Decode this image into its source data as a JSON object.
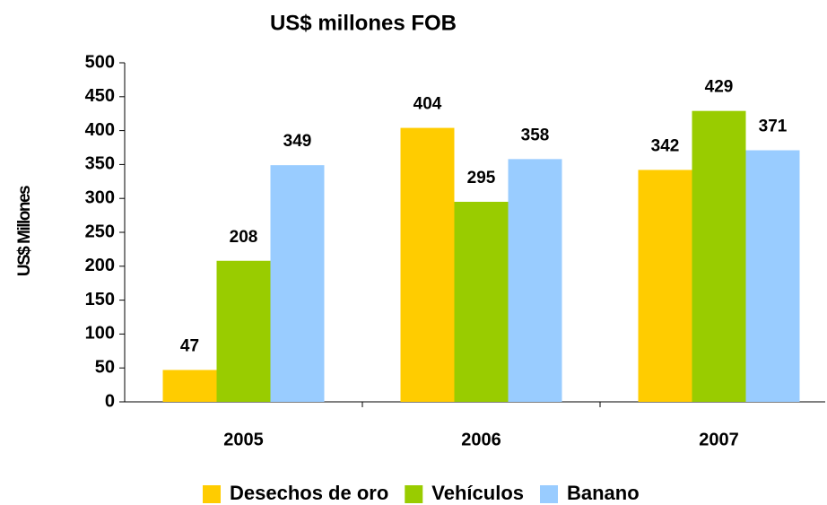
{
  "chart_data": {
    "type": "bar",
    "title": "US$ millones FOB",
    "y_label": "US$ Millones",
    "categories": [
      "2005",
      "2006",
      "2007"
    ],
    "series": [
      {
        "name": "Desechos de oro",
        "color": "#ffcc00",
        "values": [
          47,
          404,
          342
        ]
      },
      {
        "name": "Vehículos",
        "color": "#99cc00",
        "values": [
          208,
          295,
          429
        ]
      },
      {
        "name": "Banano",
        "color": "#99ccff",
        "values": [
          349,
          358,
          371
        ]
      }
    ],
    "ylim": [
      0,
      500
    ],
    "yticks": [
      0,
      50,
      100,
      150,
      200,
      250,
      300,
      350,
      400,
      450,
      500
    ],
    "grid": false,
    "legend": "bottom"
  }
}
